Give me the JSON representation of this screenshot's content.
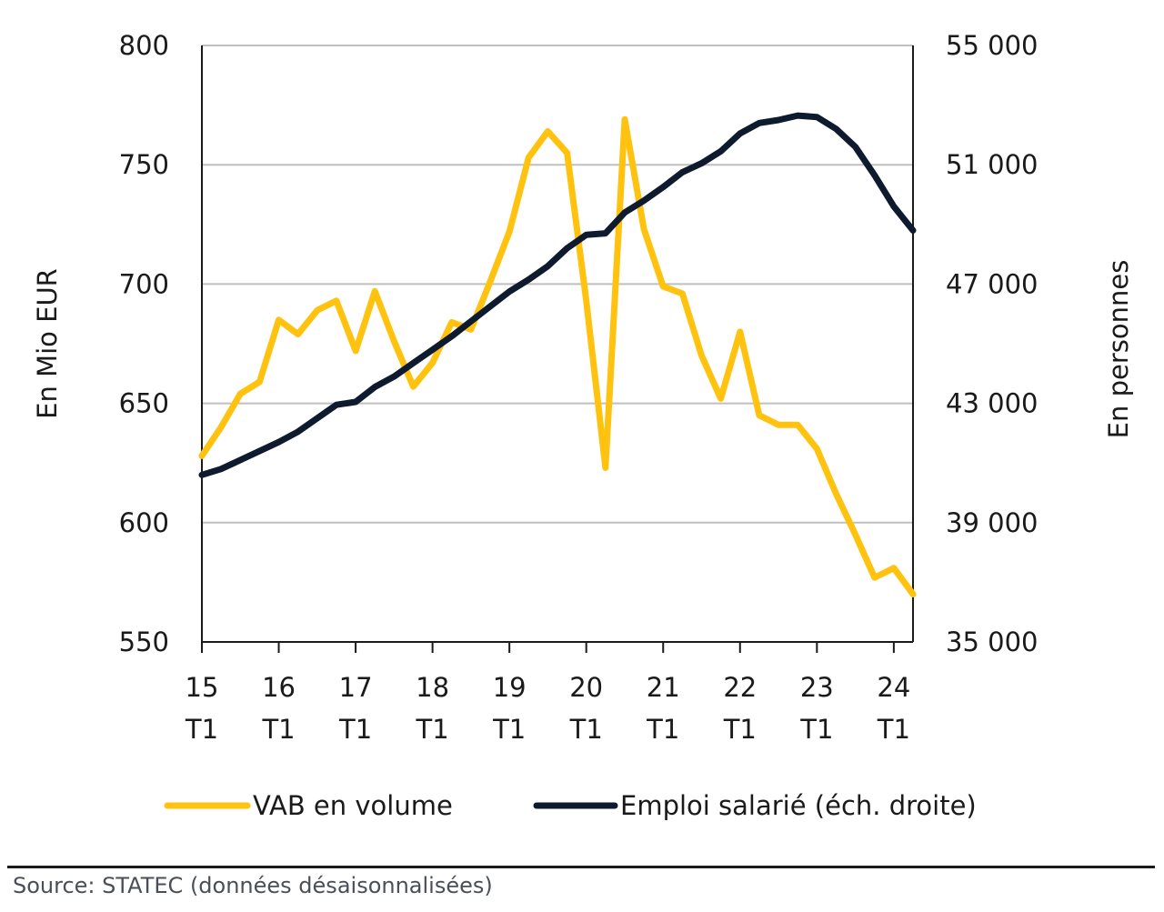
{
  "chart_data": {
    "type": "line",
    "x_labels": [
      {
        "year": "15",
        "quarter": "T1"
      },
      {
        "year": "16",
        "quarter": "T1"
      },
      {
        "year": "17",
        "quarter": "T1"
      },
      {
        "year": "18",
        "quarter": "T1"
      },
      {
        "year": "19",
        "quarter": "T1"
      },
      {
        "year": "20",
        "quarter": "T1"
      },
      {
        "year": "21",
        "quarter": "T1"
      },
      {
        "year": "22",
        "quarter": "T1"
      },
      {
        "year": "23",
        "quarter": "T1"
      },
      {
        "year": "24",
        "quarter": "T1"
      }
    ],
    "n_points": 38,
    "ylabel_left": "En Mio EUR",
    "ylabel_right": "En personnes",
    "ylim_left": [
      550,
      800
    ],
    "ylim_right": [
      35000,
      55000
    ],
    "yticks_left": [
      "550",
      "600",
      "650",
      "700",
      "750",
      "800"
    ],
    "yticks_right": [
      "35 000",
      "39 000",
      "43 000",
      "47 000",
      "51 000",
      "55 000"
    ],
    "grid": "horizontal",
    "legend_position": "bottom",
    "series": [
      {
        "name": "VAB en volume",
        "axis": "left",
        "color": "#FFC20E",
        "values": [
          628,
          640,
          654,
          659,
          685,
          679,
          689,
          693,
          672,
          697,
          676,
          657,
          667,
          684,
          681,
          701,
          722,
          753,
          764,
          755,
          693,
          623,
          769,
          723,
          699,
          696,
          670,
          652,
          680,
          645,
          641,
          641,
          631,
          612,
          595,
          577,
          581,
          570
        ]
      },
      {
        "name": "Emploi salarié (éch. droite)",
        "axis": "right",
        "color": "#0E1B2E",
        "values": [
          40600,
          40800,
          41100,
          41400,
          41700,
          42050,
          42500,
          42950,
          43050,
          43550,
          43900,
          44350,
          44800,
          45250,
          45750,
          46250,
          46750,
          47150,
          47600,
          48200,
          48650,
          48700,
          49400,
          49800,
          50250,
          50750,
          51050,
          51450,
          52050,
          52400,
          52500,
          52650,
          52600,
          52200,
          51600,
          50650,
          49600,
          48800
        ]
      }
    ]
  },
  "source": "Source: STATEC (données désaisonnalisées)"
}
